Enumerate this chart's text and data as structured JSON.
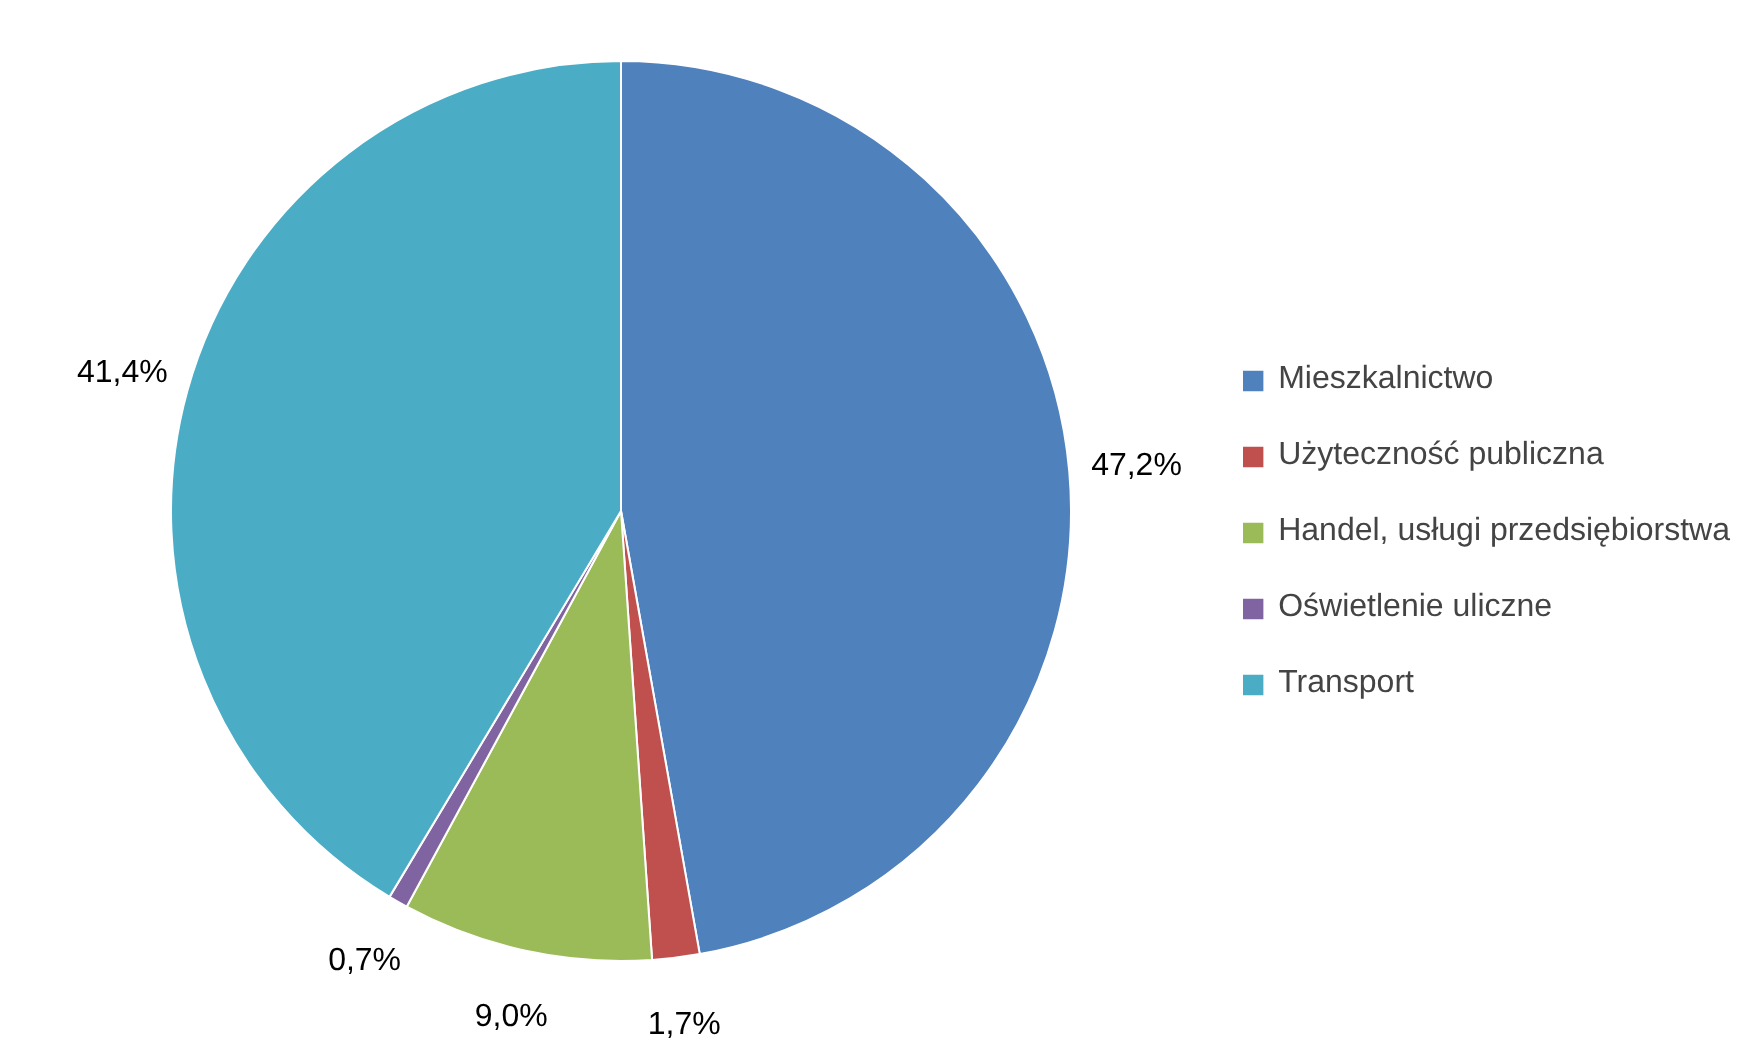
{
  "chart_data": {
    "type": "pie",
    "categories": [
      "Mieszkalnictwo",
      "Użyteczność publiczna",
      "Handel, usługi przedsiębiorstwa",
      "Oświetlenie uliczne",
      "Transport"
    ],
    "values": [
      47.2,
      1.7,
      9.0,
      0.7,
      41.4
    ],
    "colors": [
      "#4f81bd",
      "#c0504d",
      "#9bbb59",
      "#8064a2",
      "#4bacc6"
    ],
    "value_labels": [
      "47,2%",
      "1,7%",
      "9,0%",
      "0,7%",
      "41,4%"
    ],
    "legend": "right"
  }
}
